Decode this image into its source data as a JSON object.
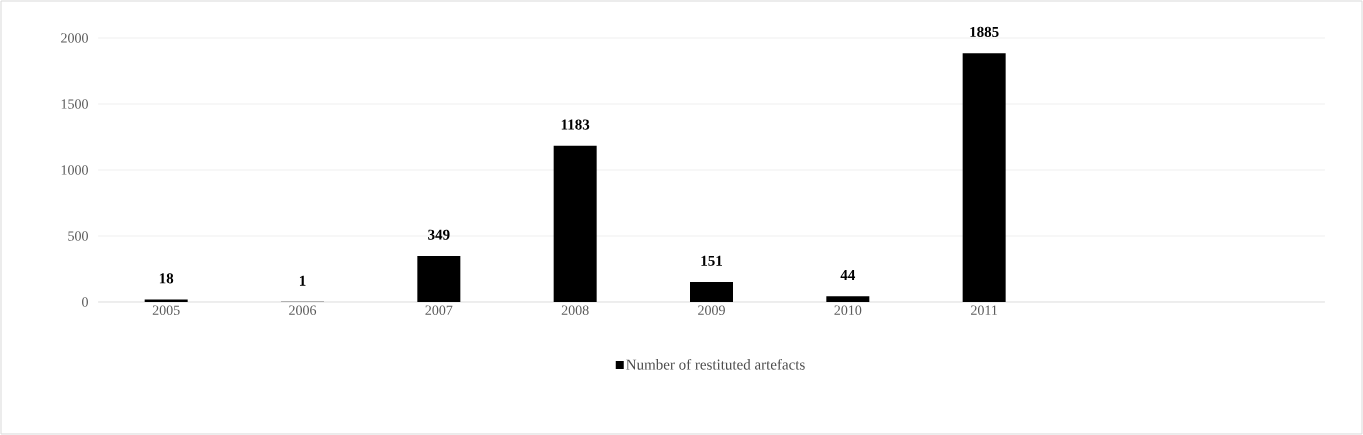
{
  "chart_data": {
    "type": "bar",
    "categories": [
      "2005",
      "2006",
      "2007",
      "2008",
      "2009",
      "2010",
      "2011",
      null,
      null
    ],
    "series": [
      {
        "name": "Number of restituted artefacts",
        "color": "#000000",
        "values": [
          18,
          1,
          349,
          1183,
          151,
          44,
          1885,
          null,
          null
        ]
      }
    ],
    "ylim": [
      0,
      2000
    ],
    "yticks": [
      0,
      500,
      1000,
      1500,
      2000
    ],
    "grid": "y",
    "legend": "bottom",
    "data_labels": true
  }
}
